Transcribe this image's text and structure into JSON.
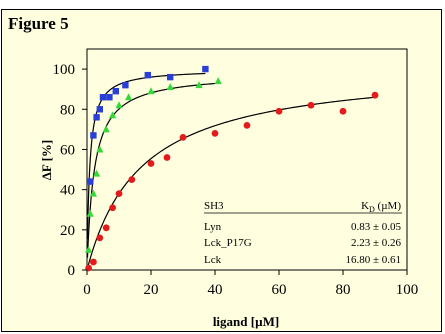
{
  "figure_label": "Figure 5",
  "chart_data": {
    "type": "scatter",
    "xlabel": "ligand [µM]",
    "ylabel": "ΔF [%]",
    "xlim": [
      0,
      100
    ],
    "ylim": [
      0,
      110
    ],
    "x_ticks": [
      "0",
      "20",
      "40",
      "60",
      "80",
      "100"
    ],
    "y_ticks": [
      "0",
      "20",
      "40",
      "60",
      "80",
      "100"
    ],
    "legend": {
      "header_left": "SH3",
      "header_right_main": "K",
      "header_right_sub": "D",
      "header_right_unit": " (µM)",
      "rows": [
        {
          "name": "Lyn",
          "value": "0.83 ± 0.05"
        },
        {
          "name": "Lck_P17G",
          "value": "2.23 ± 0.26"
        },
        {
          "name": "Lck",
          "value": "16.80 ± 0.61"
        }
      ]
    },
    "series": [
      {
        "name": "Lyn",
        "marker": "square",
        "color": "#2a3fd6",
        "kd": 0.83,
        "fmax": 100,
        "fit_xmax": 37,
        "points": [
          [
            1,
            44
          ],
          [
            2,
            67
          ],
          [
            3,
            76
          ],
          [
            4,
            80
          ],
          [
            5,
            86
          ],
          [
            7,
            86
          ],
          [
            9,
            89
          ],
          [
            12,
            92
          ],
          [
            19,
            97
          ],
          [
            26,
            96
          ],
          [
            37,
            100
          ]
        ]
      },
      {
        "name": "Lck_P17G",
        "marker": "triangle",
        "color": "#35d83a",
        "kd": 2.23,
        "fmax": 98,
        "fit_xmax": 41,
        "points": [
          [
            0.5,
            10
          ],
          [
            1,
            28
          ],
          [
            2,
            38
          ],
          [
            3,
            48
          ],
          [
            4,
            60
          ],
          [
            6,
            70
          ],
          [
            8,
            77
          ],
          [
            10,
            82
          ],
          [
            13,
            86
          ],
          [
            20,
            89
          ],
          [
            26,
            91
          ],
          [
            35,
            92
          ],
          [
            41,
            94
          ]
        ]
      },
      {
        "name": "Lck",
        "marker": "circle",
        "color": "#e31b1b",
        "kd": 16.8,
        "fmax": 102,
        "fit_xmax": 90,
        "points": [
          [
            0.5,
            1
          ],
          [
            2,
            4
          ],
          [
            4,
            16
          ],
          [
            6,
            21
          ],
          [
            8,
            31
          ],
          [
            10,
            38
          ],
          [
            14,
            45
          ],
          [
            20,
            53
          ],
          [
            25,
            56
          ],
          [
            30,
            66
          ],
          [
            40,
            68
          ],
          [
            50,
            72
          ],
          [
            60,
            79
          ],
          [
            70,
            82
          ],
          [
            80,
            79
          ],
          [
            90,
            87
          ]
        ]
      }
    ]
  }
}
